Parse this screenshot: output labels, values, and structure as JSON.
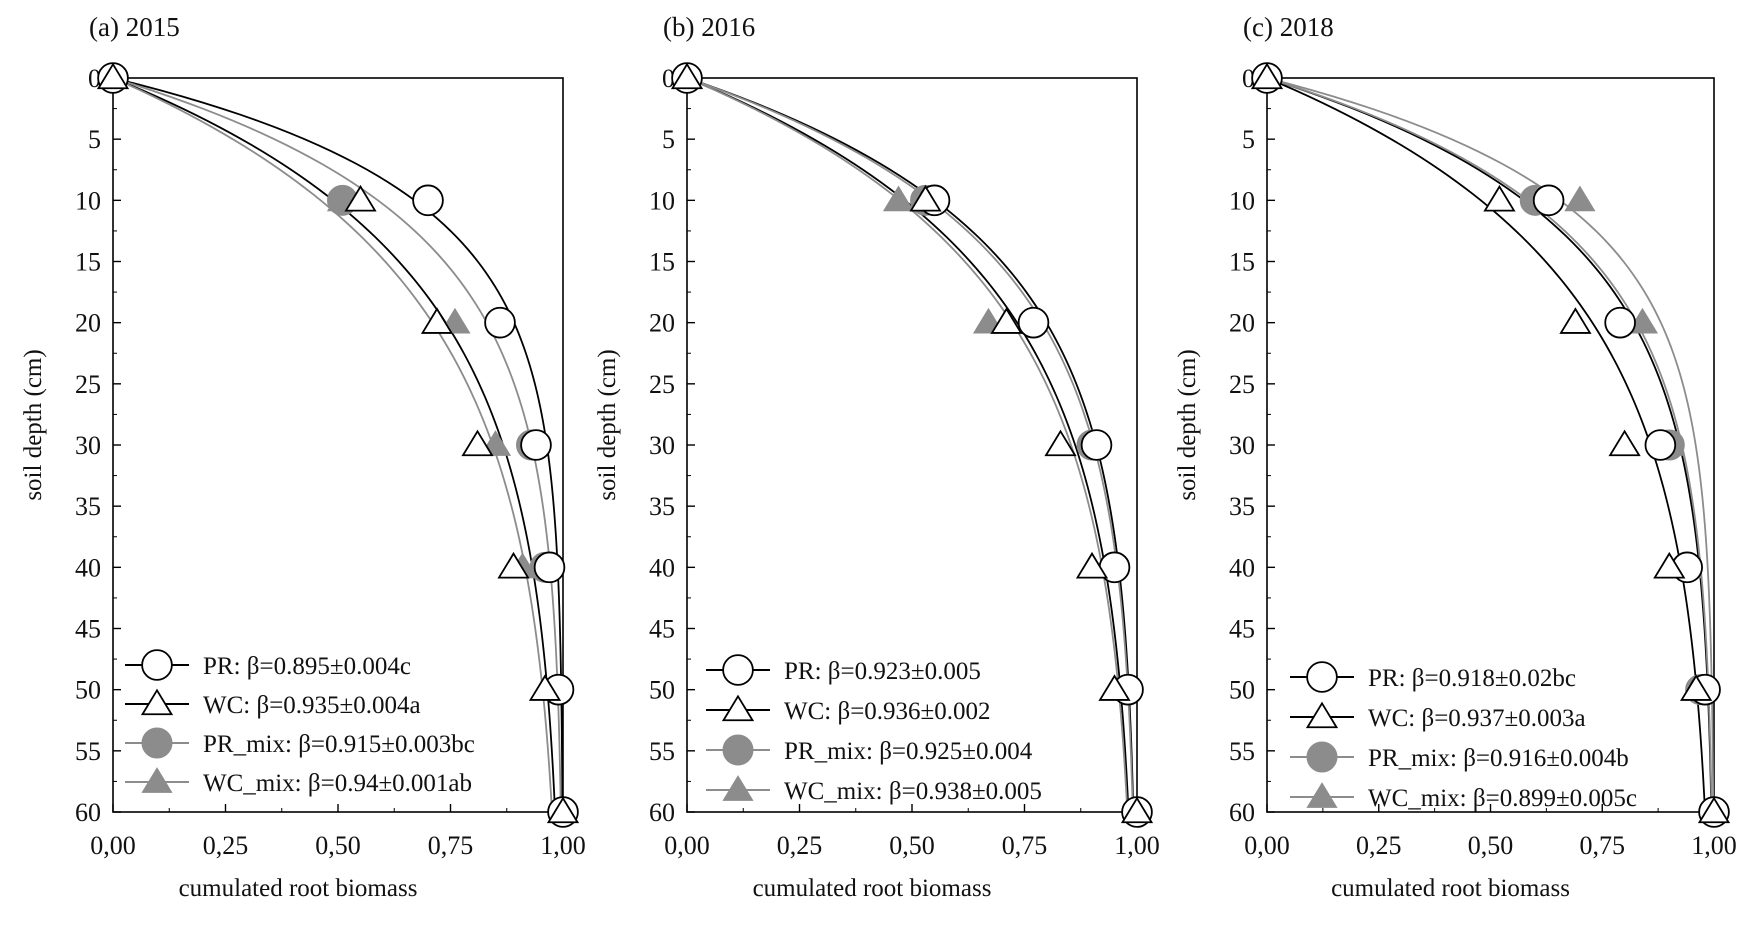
{
  "chart_data": [
    {
      "type": "scatter",
      "title": "(a) 2015",
      "xlabel": "cumulated root biomass",
      "ylabel": "soil depth (cm)",
      "xlim": [
        0,
        1
      ],
      "ylim": [
        0,
        60
      ],
      "y_inverted": true,
      "x_ticks": [
        0,
        0.25,
        0.5,
        0.75,
        1
      ],
      "x_tick_labels": [
        "0,00",
        "0,25",
        "0,50",
        "0,75",
        "1,00"
      ],
      "y_ticks": [
        0,
        5,
        10,
        15,
        20,
        25,
        30,
        35,
        40,
        45,
        50,
        55,
        60
      ],
      "y_tick_labels": [
        "0",
        "5",
        "10",
        "15",
        "20",
        "25",
        "30",
        "35",
        "40",
        "45",
        "50",
        "55",
        "60"
      ],
      "legend_position": "bottom-left",
      "depths": [
        0,
        10,
        20,
        30,
        40,
        50,
        60
      ],
      "series": [
        {
          "name": "PR",
          "beta": 0.895,
          "marker": "circle-open",
          "color": "#000000",
          "values": [
            0,
            0.7,
            0.86,
            0.94,
            0.97,
            0.99,
            1.0
          ],
          "legend_label": "β=0.895±0.004c"
        },
        {
          "name": "WC",
          "beta": 0.935,
          "marker": "triangle-open",
          "color": "#000000",
          "values": [
            0,
            0.55,
            0.72,
            0.81,
            0.89,
            0.96,
            1.0
          ],
          "legend_label": "β=0.935±0.004a"
        },
        {
          "name": "PR_mix",
          "beta": 0.915,
          "marker": "circle-filled",
          "color": "#8c8c8c",
          "values": [
            0,
            0.51,
            0.86,
            0.93,
            0.96,
            0.99,
            1.0
          ],
          "legend_label": "β=0.915±0.003bc"
        },
        {
          "name": "WC_mix",
          "beta": 0.94,
          "marker": "triangle-filled",
          "color": "#8c8c8c",
          "values": [
            0,
            0.51,
            0.76,
            0.85,
            0.91,
            0.98,
            1.0
          ],
          "legend_label": "β=0.94±0.001ab"
        }
      ]
    },
    {
      "type": "scatter",
      "title": "(b) 2016",
      "xlabel": "cumulated root biomass",
      "ylabel": "soil depth (cm)",
      "xlim": [
        0,
        1
      ],
      "ylim": [
        0,
        60
      ],
      "y_inverted": true,
      "x_ticks": [
        0,
        0.25,
        0.5,
        0.75,
        1
      ],
      "x_tick_labels": [
        "0,00",
        "0,25",
        "0,50",
        "0,75",
        "1,00"
      ],
      "y_ticks": [
        0,
        5,
        10,
        15,
        20,
        25,
        30,
        35,
        40,
        45,
        50,
        55,
        60
      ],
      "y_tick_labels": [
        "0",
        "5",
        "10",
        "15",
        "20",
        "25",
        "30",
        "35",
        "40",
        "45",
        "50",
        "55",
        "60"
      ],
      "legend_position": "bottom-left",
      "depths": [
        0,
        10,
        20,
        30,
        40,
        50,
        60
      ],
      "series": [
        {
          "name": "PR",
          "beta": 0.923,
          "marker": "circle-open",
          "color": "#000000",
          "values": [
            0,
            0.55,
            0.77,
            0.91,
            0.95,
            0.98,
            1.0
          ],
          "legend_label": "β=0.923±0.005"
        },
        {
          "name": "WC",
          "beta": 0.936,
          "marker": "triangle-open",
          "color": "#000000",
          "values": [
            0,
            0.53,
            0.71,
            0.83,
            0.9,
            0.95,
            1.0
          ],
          "legend_label": "β=0.936±0.002"
        },
        {
          "name": "PR_mix",
          "beta": 0.925,
          "marker": "circle-filled",
          "color": "#8c8c8c",
          "values": [
            0,
            0.53,
            0.77,
            0.9,
            0.95,
            0.98,
            1.0
          ],
          "legend_label": "β=0.925±0.004"
        },
        {
          "name": "WC_mix",
          "beta": 0.938,
          "marker": "triangle-filled",
          "color": "#8c8c8c",
          "values": [
            0,
            0.47,
            0.67,
            0.83,
            0.9,
            0.95,
            1.0
          ],
          "legend_label": "β=0.938±0.005"
        }
      ]
    },
    {
      "type": "scatter",
      "title": "(c) 2018",
      "xlabel": "cumulated root biomass",
      "ylabel": "soil depth (cm)",
      "xlim": [
        0,
        1
      ],
      "ylim": [
        0,
        60
      ],
      "y_inverted": true,
      "x_ticks": [
        0,
        0.25,
        0.5,
        0.75,
        1
      ],
      "x_tick_labels": [
        "0,00",
        "0,25",
        "0,50",
        "0,75",
        "1,00"
      ],
      "y_ticks": [
        0,
        5,
        10,
        15,
        20,
        25,
        30,
        35,
        40,
        45,
        50,
        55,
        60
      ],
      "y_tick_labels": [
        "0",
        "5",
        "10",
        "15",
        "20",
        "25",
        "30",
        "35",
        "40",
        "45",
        "50",
        "55",
        "60"
      ],
      "legend_position": "bottom-left",
      "depths": [
        0,
        10,
        20,
        30,
        40,
        50,
        60
      ],
      "series": [
        {
          "name": "PR",
          "beta": 0.918,
          "marker": "circle-open",
          "color": "#000000",
          "values": [
            0,
            0.63,
            0.79,
            0.88,
            0.94,
            0.98,
            1.0
          ],
          "legend_label": "β=0.918±0.02bc"
        },
        {
          "name": "WC",
          "beta": 0.937,
          "marker": "triangle-open",
          "color": "#000000",
          "values": [
            0,
            0.52,
            0.69,
            0.8,
            0.9,
            0.96,
            1.0
          ],
          "legend_label": "β=0.937±0.003a"
        },
        {
          "name": "PR_mix",
          "beta": 0.916,
          "marker": "circle-filled",
          "color": "#8c8c8c",
          "values": [
            0,
            0.6,
            0.79,
            0.9,
            0.94,
            0.97,
            1.0
          ],
          "legend_label": "β=0.916±0.004b"
        },
        {
          "name": "WC_mix",
          "beta": 0.899,
          "marker": "triangle-filled",
          "color": "#8c8c8c",
          "values": [
            0,
            0.7,
            0.84,
            0.9,
            0.94,
            0.97,
            1.0
          ],
          "legend_label": "β=0.899±0.005c"
        }
      ]
    }
  ]
}
